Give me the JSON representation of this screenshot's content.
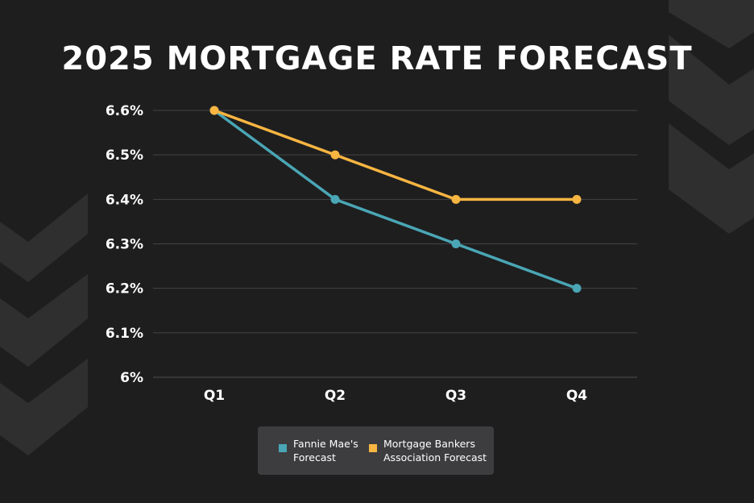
{
  "colors": {
    "background": "#1e1e1f",
    "chevron": "#2f2f30",
    "grid": "#444446",
    "fannie": "#4aa6b5",
    "mba": "#f7b541",
    "legend_bg": "#3d3d3f"
  },
  "chart_data": {
    "type": "line",
    "title": "2025 MORTGAGE RATE FORECAST",
    "categories": [
      "Q1",
      "Q2",
      "Q3",
      "Q4"
    ],
    "ylim": [
      6.0,
      6.6
    ],
    "y_ticks": [
      {
        "value": 6.0,
        "label": "6%"
      },
      {
        "value": 6.1,
        "label": "6.1%"
      },
      {
        "value": 6.2,
        "label": "6.2%"
      },
      {
        "value": 6.3,
        "label": "6.3%"
      },
      {
        "value": 6.4,
        "label": "6.4%"
      },
      {
        "value": 6.5,
        "label": "6.5%"
      },
      {
        "value": 6.6,
        "label": "6.6%"
      }
    ],
    "grid": true,
    "legend_position": "bottom-center",
    "series": [
      {
        "name": "Fannie Mae's Forecast",
        "legend_lines": [
          "Fannie Mae's",
          "Forecast"
        ],
        "color": "#4aa6b5",
        "values": [
          6.6,
          6.4,
          6.3,
          6.2
        ]
      },
      {
        "name": "Mortgage Bankers Association Forecast",
        "legend_lines": [
          "Mortgage Bankers",
          "Association Forecast"
        ],
        "color": "#f7b541",
        "values": [
          6.6,
          6.5,
          6.4,
          6.4
        ]
      }
    ]
  }
}
